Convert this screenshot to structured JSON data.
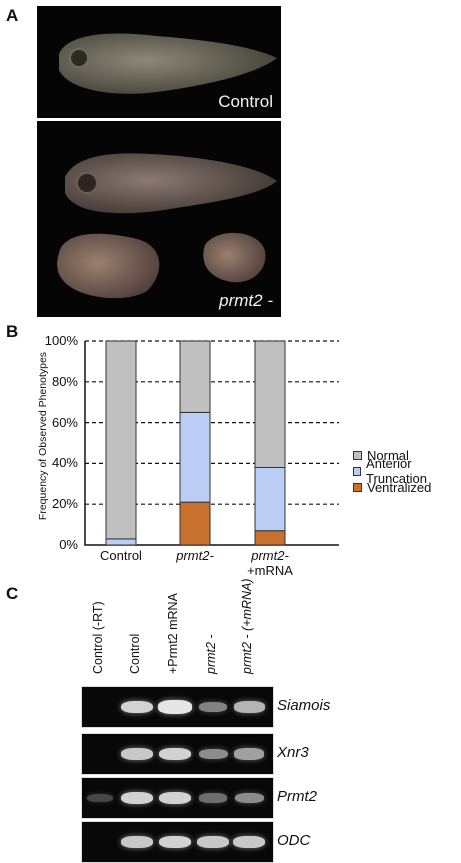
{
  "panels": {
    "a": "A",
    "b": "B",
    "c": "C"
  },
  "panel_a": {
    "control_caption": "Control",
    "prmt2_caption": "prmt2 -"
  },
  "chart_data": {
    "type": "bar",
    "stacked": true,
    "ylabel": "Frequency of Observed Phenotypes",
    "yticks": [
      "0%",
      "20%",
      "40%",
      "60%",
      "80%",
      "100%"
    ],
    "ylim": [
      0,
      100
    ],
    "grid": "dashed horizontal",
    "categories": [
      "Control",
      "prmt2-",
      "prmt2-\n+mRNA"
    ],
    "series": [
      {
        "name": "Ventralized",
        "color": "#c8702d",
        "values": [
          0,
          21,
          7
        ]
      },
      {
        "name": "Anterior Truncation",
        "color": "#b9cdf5",
        "values": [
          3,
          44,
          31
        ]
      },
      {
        "name": "Normal",
        "color": "#c0c0c0",
        "values": [
          97,
          35,
          62
        ]
      }
    ],
    "legend": [
      "Normal",
      "Anterior Truncation",
      "Ventralized"
    ],
    "legend_position": "right"
  },
  "panel_c": {
    "lanes": [
      "Control (-RT)",
      "Control",
      "+Prmt2 mRNA",
      "prmt2 -",
      "prmt2 - (+mRNA)"
    ],
    "genes": [
      {
        "name": "Siamois",
        "intensity": [
          0,
          0.85,
          0.95,
          0.45,
          0.7
        ]
      },
      {
        "name": "Xnr3",
        "intensity": [
          0,
          0.8,
          0.85,
          0.5,
          0.6
        ]
      },
      {
        "name": "Prmt2",
        "intensity": [
          0.15,
          0.85,
          0.85,
          0.35,
          0.5
        ]
      },
      {
        "name": "ODC",
        "intensity": [
          0,
          0.8,
          0.85,
          0.8,
          0.8
        ]
      }
    ]
  }
}
